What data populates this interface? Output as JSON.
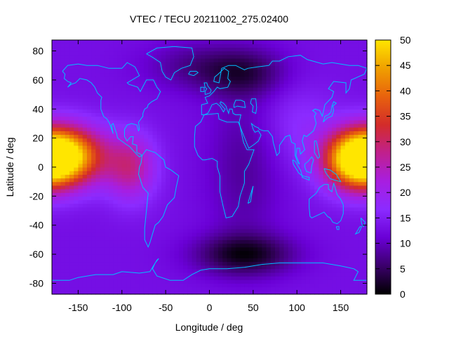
{
  "chart_data": {
    "type": "heatmap",
    "title": "VTEC / TECU 20211002_275.02400",
    "xlabel": "Longitude / deg",
    "ylabel": "Latitude / deg",
    "xlim": [
      -180,
      180
    ],
    "ylim": [
      -87.5,
      87.5
    ],
    "xticks": [
      -150,
      -100,
      -50,
      0,
      50,
      100,
      150
    ],
    "yticks": [
      -80,
      -60,
      -40,
      -20,
      0,
      20,
      40,
      60,
      80
    ],
    "colorbar": {
      "min": 0,
      "max": 50,
      "ticks": [
        0,
        5,
        10,
        15,
        20,
        25,
        30,
        35,
        40,
        45,
        50
      ],
      "palette": [
        "#000000",
        "#3b006b",
        "#6a00d6",
        "#8b2bff",
        "#a81ee0",
        "#c0208d",
        "#d32c2a",
        "#e8620d",
        "#f0a000",
        "#ffe600"
      ]
    },
    "grid": false,
    "overlay": "coastlines",
    "coastline_color": "#00bfff",
    "field": {
      "description_units": "TECU",
      "lat_step": 2.5,
      "lon_step": 5,
      "background": 13,
      "components": [
        {
          "lon": -165,
          "lat": 8,
          "amp": 34,
          "slon": 32,
          "slat": 14
        },
        {
          "lon": 168,
          "lat": 5,
          "amp": 32,
          "slon": 26,
          "slat": 14
        },
        {
          "lon": -90,
          "lat": 0,
          "amp": 14,
          "slon": 20,
          "slat": 16
        },
        {
          "lon": -20,
          "lat": 70,
          "amp": -5,
          "slon": 40,
          "slat": 12
        },
        {
          "lon": 40,
          "lat": 65,
          "amp": -8,
          "slon": 35,
          "slat": 12
        },
        {
          "lon": 40,
          "lat": -60,
          "amp": -11,
          "slon": 40,
          "slat": 10
        },
        {
          "lon": 40,
          "lat": 0,
          "amp": -5,
          "slon": 30,
          "slat": 40
        },
        {
          "lon": 100,
          "lat": 30,
          "amp": 4,
          "slon": 30,
          "slat": 20
        }
      ]
    }
  }
}
